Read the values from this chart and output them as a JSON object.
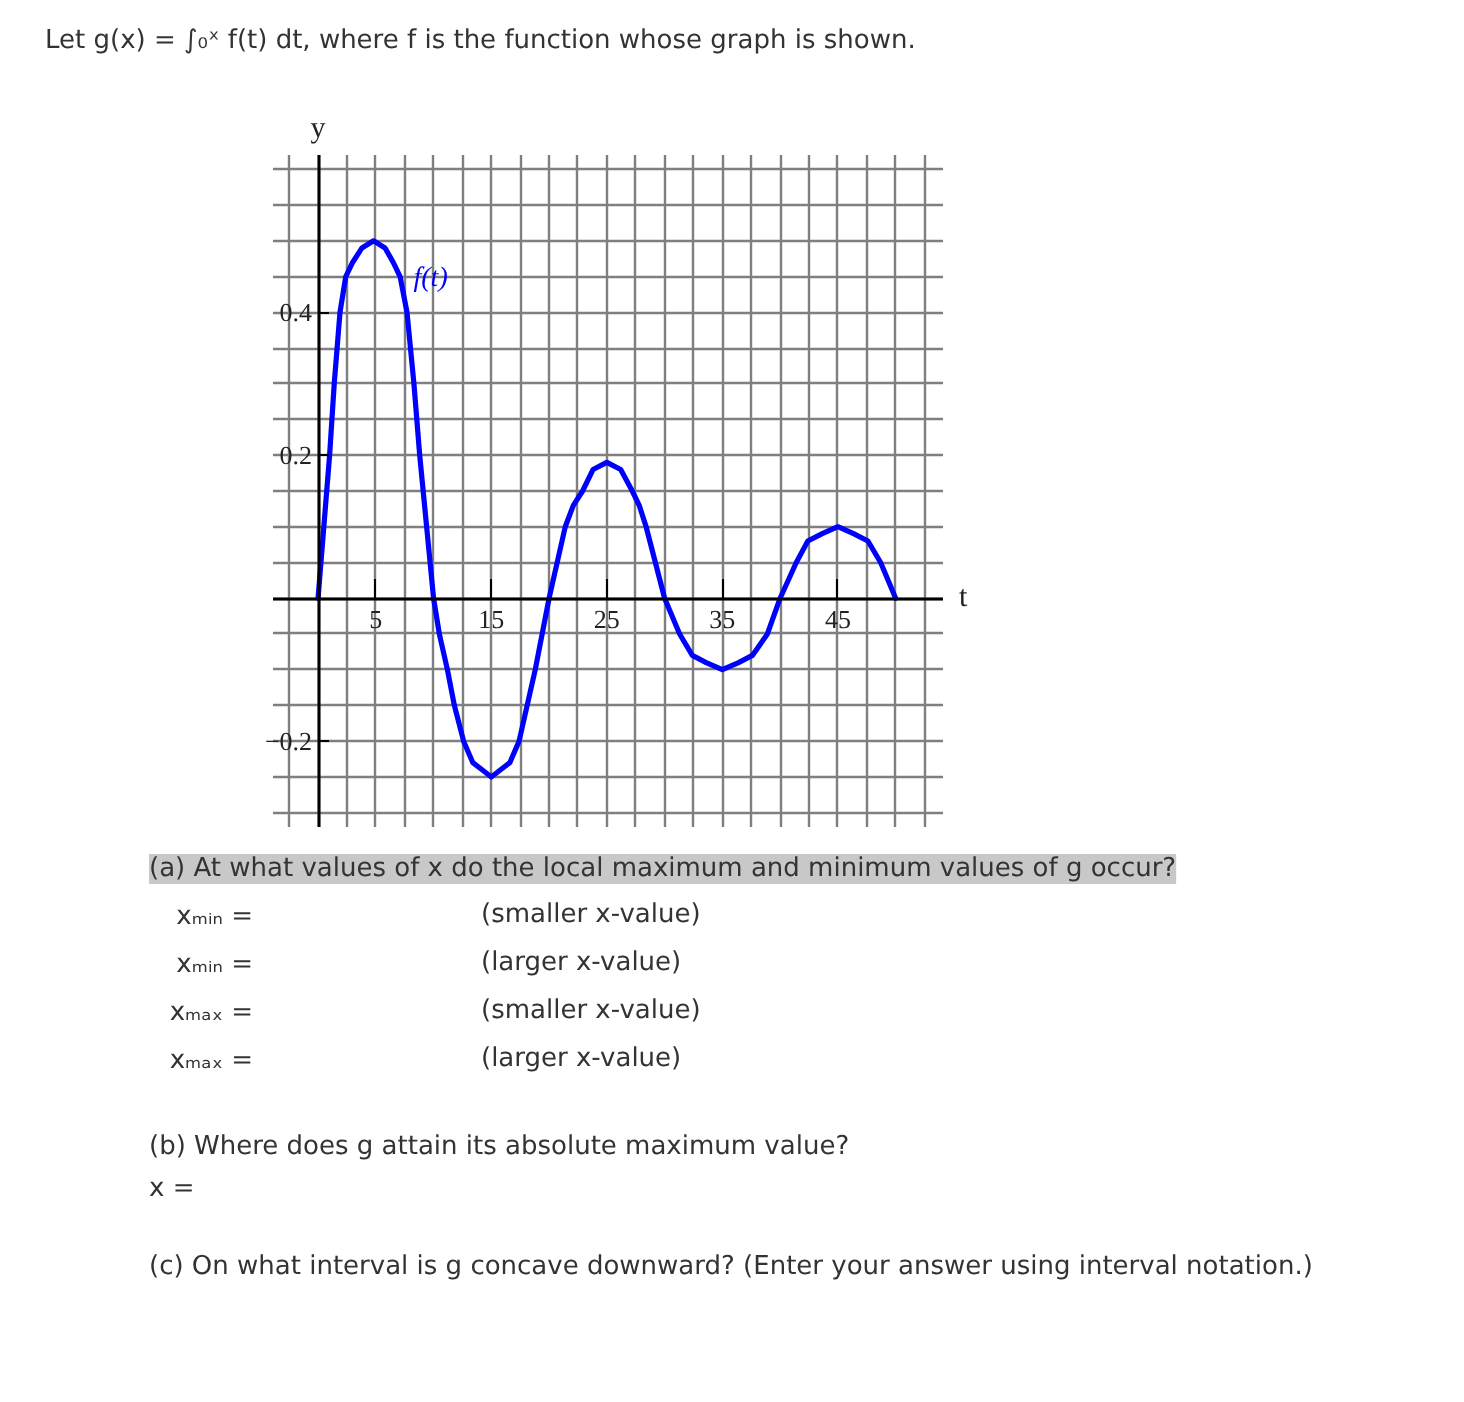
{
  "chart_data": {
    "type": "line",
    "title": "Let g(x) = ∫₀ˣ f(t) dt, where f is the function whose graph is shown.",
    "xlabel": "t",
    "ylabel": "y",
    "x": [
      0,
      0.5,
      1,
      1.4,
      1.9,
      2.4,
      3,
      3.8,
      4.8,
      5.8,
      6.5,
      7.1,
      7.7,
      8.3,
      8.8,
      9.4,
      10,
      10.5,
      11.2,
      11.8,
      12.6,
      13.4,
      14.2,
      15,
      15.8,
      16.6,
      17.4,
      18.1,
      18.8,
      19.4,
      20,
      20.7,
      21.4,
      22.1,
      22.9,
      23.8,
      25,
      26.2,
      27.2,
      27.8,
      28.4,
      29.2,
      30,
      31.3,
      32.4,
      33.6,
      35,
      36.4,
      37.6,
      38.9,
      40,
      41.4,
      42.4,
      43.6,
      45,
      46.4,
      47.6,
      48.7,
      50
    ],
    "series": [
      {
        "name": "f(t)",
        "color": "#0000ff",
        "values": [
          0,
          0.1,
          0.2,
          0.3,
          0.4,
          0.45,
          0.47,
          0.49,
          0.5,
          0.49,
          0.47,
          0.45,
          0.4,
          0.3,
          0.2,
          0.1,
          0,
          -0.05,
          -0.1,
          -0.15,
          -0.2,
          -0.23,
          -0.24,
          -0.25,
          -0.24,
          -0.23,
          -0.2,
          -0.15,
          -0.1,
          -0.05,
          0,
          0.05,
          0.1,
          0.13,
          0.15,
          0.18,
          0.19,
          0.18,
          0.15,
          0.13,
          0.1,
          0.05,
          0,
          -0.05,
          -0.08,
          -0.09,
          -0.1,
          -0.09,
          -0.08,
          -0.05,
          0,
          0.05,
          0.08,
          0.09,
          0.1,
          0.09,
          0.08,
          0.05,
          0
        ]
      }
    ],
    "xlim": [
      -3.9,
      54.1
    ],
    "ylim": [
      -0.32,
      0.62
    ],
    "xticks": [
      {
        "value": -2.5,
        "label": null
      },
      {
        "value": 0,
        "label": null
      },
      {
        "value": 2.5,
        "label": null
      },
      5,
      {
        "value": 7.5,
        "label": null
      },
      {
        "value": 10,
        "label": null
      },
      {
        "value": 12.5,
        "label": null
      },
      15,
      {
        "value": 17.5,
        "label": null
      },
      {
        "value": 20,
        "label": null
      },
      {
        "value": 22.5,
        "label": null
      },
      25,
      {
        "value": 27.5,
        "label": null
      },
      {
        "value": 30,
        "label": null
      },
      {
        "value": 32.5,
        "label": null
      },
      35,
      {
        "value": 37.5,
        "label": null
      },
      {
        "value": 40,
        "label": null
      },
      {
        "value": 42.5,
        "label": null
      },
      45,
      {
        "value": 47.5,
        "label": null
      },
      {
        "value": 50,
        "label": null
      },
      {
        "value": 52.5,
        "label": null
      }
    ],
    "yticks": [
      {
        "value": -0.3,
        "label": null
      },
      {
        "value": -0.25,
        "label": null
      },
      {
        "value": -0.2,
        "label": "−0.2"
      },
      {
        "value": -0.15,
        "label": null
      },
      {
        "value": -0.1,
        "label": null
      },
      {
        "value": -0.05,
        "label": null
      },
      {
        "value": 0,
        "label": null
      },
      {
        "value": 0.05,
        "label": null
      },
      {
        "value": 0.1,
        "label": null
      },
      {
        "value": 0.15,
        "label": null
      },
      0.2,
      {
        "value": 0.25,
        "label": null
      },
      {
        "value": 0.3,
        "label": null
      },
      {
        "value": 0.35,
        "label": null
      },
      0.4,
      {
        "value": 0.45,
        "label": null
      },
      {
        "value": 0.5,
        "label": null
      },
      {
        "value": 0.55,
        "label": null
      },
      {
        "value": 0.6,
        "label": null
      }
    ],
    "grid": true,
    "line_style": "solid",
    "annotations": [
      "(a) At what values of x do the local maximum and minimum values of g occur?",
      "xₘᵢₙ =",
      "(smaller x-value)",
      "xₘᵢₙ =",
      "(larger x-value)",
      "xₘₐₓ =",
      "(smaller x-value)",
      "xₘₐₓ =",
      "(larger x-value)",
      "(b) Where does g attain its absolute maximum value?",
      "x =",
      "(c) On what interval is g concave downward? (Enter your answer using interval notation.)"
    ]
  }
}
